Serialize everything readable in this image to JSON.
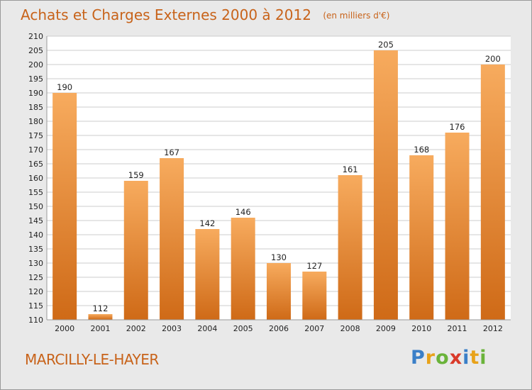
{
  "chart_data": {
    "type": "bar",
    "title": "Achats et Charges Externes 2000 à 2012",
    "subtitle": "(en milliers d'€)",
    "categories": [
      "2000",
      "2001",
      "2002",
      "2003",
      "2004",
      "2005",
      "2006",
      "2007",
      "2008",
      "2009",
      "2010",
      "2011",
      "2012"
    ],
    "values": [
      190,
      112,
      159,
      167,
      142,
      146,
      130,
      127,
      161,
      205,
      168,
      176,
      200
    ],
    "xlabel": "",
    "ylabel": "",
    "ylim": [
      110,
      210
    ],
    "yticks": [
      110,
      115,
      120,
      125,
      130,
      135,
      140,
      145,
      150,
      155,
      160,
      165,
      170,
      175,
      180,
      185,
      190,
      195,
      200,
      205,
      210
    ],
    "grid": true,
    "bar_color": "#f0923c",
    "bar_color_light": "#f7ab5e",
    "bar_color_dark": "#cf6a17"
  },
  "footer": {
    "place_name": "MARCILLY-LE-HAYER"
  },
  "brand": {
    "letters": [
      {
        "char": "P",
        "color": "#3a7fc8"
      },
      {
        "char": "r",
        "color": "#e8a21a"
      },
      {
        "char": "o",
        "color": "#6ab33a"
      },
      {
        "char": "x",
        "color": "#d93a2a"
      },
      {
        "char": "i",
        "color": "#3a7fc8"
      },
      {
        "char": "t",
        "color": "#e8a21a"
      },
      {
        "char": "i",
        "color": "#6ab33a"
      }
    ]
  },
  "colors": {
    "title": "#c8631a",
    "background": "#e9e9e9",
    "plot_background": "#ffffff",
    "grid": "#cccccc"
  }
}
